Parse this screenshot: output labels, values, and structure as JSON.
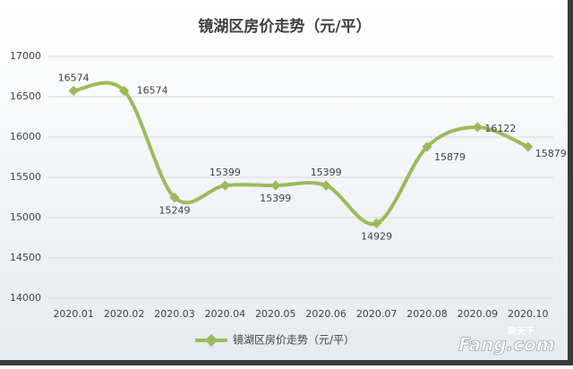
{
  "chart_data": {
    "type": "line",
    "title": "镜湖区房价走势（元/平）",
    "categories": [
      "2020.01",
      "2020.02",
      "2020.03",
      "2020.04",
      "2020.05",
      "2020.06",
      "2020.07",
      "2020.08",
      "2020.09",
      "2020.10"
    ],
    "series": [
      {
        "name": "镜湖区房价走势（元/平）",
        "color": "#9bbb59",
        "values": [
          16574,
          16574,
          15249,
          15399,
          15399,
          15399,
          14929,
          15879,
          16122,
          15879
        ]
      }
    ],
    "ylim": [
      14000,
      17000
    ],
    "yticks": [
      14000,
      14500,
      15000,
      15500,
      16000,
      16500,
      17000
    ],
    "grid": true,
    "legend": "bottom",
    "watermark": "房天下",
    "watermark_brand": "Fang.com"
  }
}
